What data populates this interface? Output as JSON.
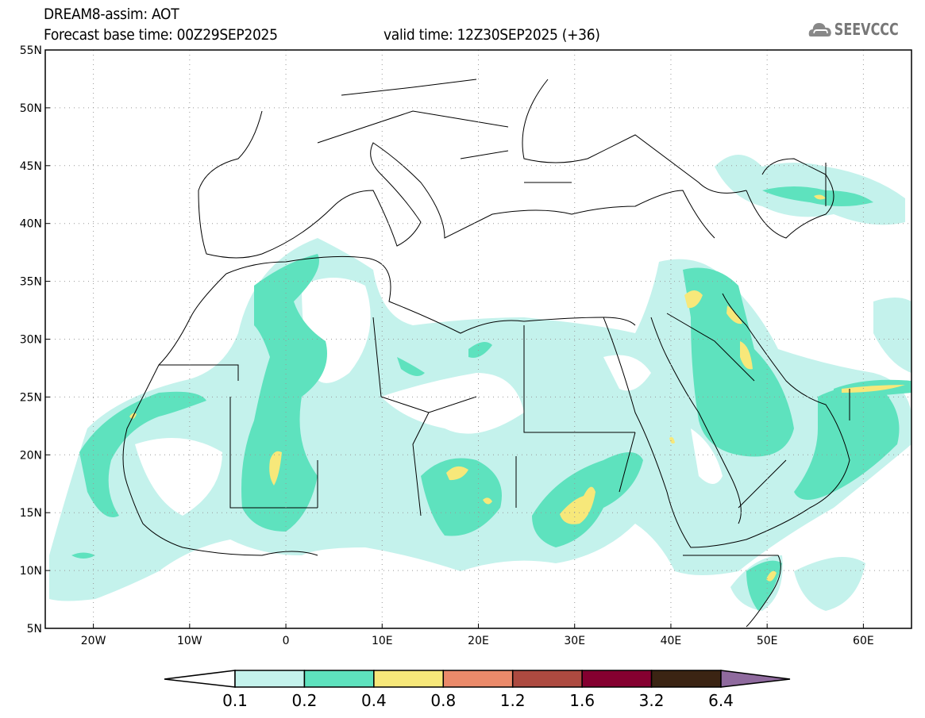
{
  "header": {
    "title": "DREAM8-assim: AOT",
    "base_time": "Forecast base time: 00Z29SEP2025",
    "valid_time": "valid time: 12Z30SEP2025 (+36)",
    "logo_text": "SEEVCCC"
  },
  "map": {
    "lat_labels": [
      "55N",
      "50N",
      "45N",
      "40N",
      "35N",
      "30N",
      "25N",
      "20N",
      "15N",
      "10N",
      "5N"
    ],
    "lon_labels": [
      "20W",
      "10W",
      "0",
      "10E",
      "20E",
      "30E",
      "40E",
      "50E",
      "60E"
    ],
    "lon_values": [
      -20,
      -10,
      0,
      10,
      20,
      30,
      40,
      50,
      60
    ],
    "lat_values": [
      55,
      50,
      45,
      40,
      35,
      30,
      25,
      20,
      15,
      10,
      5
    ],
    "extent": {
      "lon_min": -25,
      "lon_max": 65,
      "lat_min": 5,
      "lat_max": 55
    }
  },
  "colorbar": {
    "labels": [
      "0.1",
      "0.2",
      "0.4",
      "0.8",
      "1.2",
      "1.6",
      "3.2",
      "6.4"
    ],
    "colors": [
      "#c4f2ec",
      "#5ee2be",
      "#f7e87a",
      "#eb8a6a",
      "#ad4a40",
      "#850030",
      "#3b2413",
      "#8f6a9e"
    ]
  }
}
